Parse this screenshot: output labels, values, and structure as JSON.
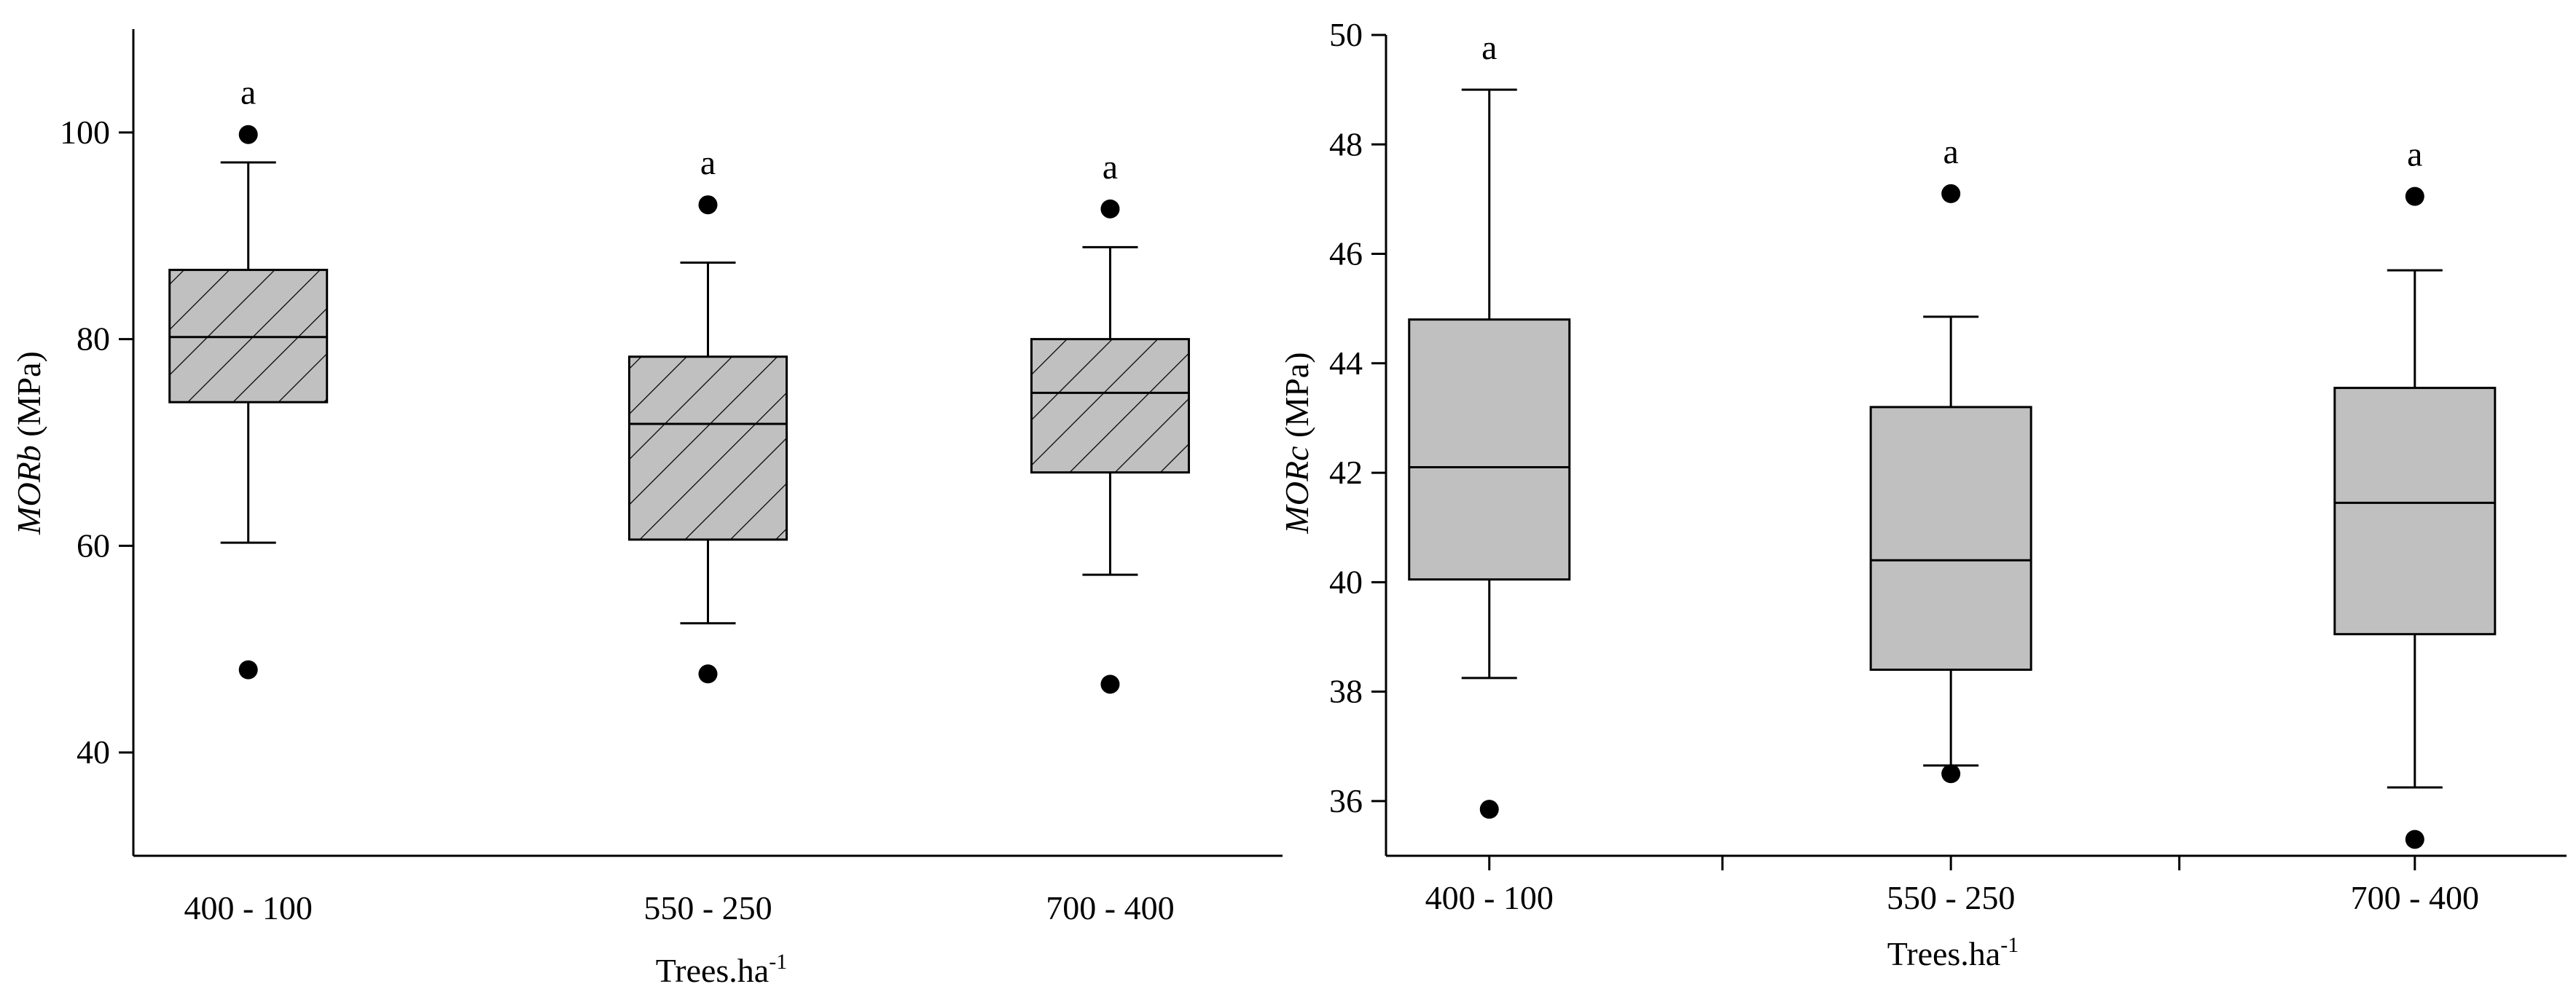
{
  "chart_data": [
    {
      "type": "box",
      "ylabel_italic": "MORb",
      "ylabel_unit": " (MPa)",
      "xlabel_main": "Trees.ha",
      "xlabel_sup": "-1",
      "ylim": [
        30,
        110
      ],
      "yticks": [
        40,
        60,
        80,
        100
      ],
      "hatched": true,
      "box_fill": "#c0c0c0",
      "categories": [
        "400 - 100",
        "550 - 250",
        "700 - 400"
      ],
      "boxes": [
        {
          "category": "400 - 100",
          "whisker_low": 60.3,
          "q1": 73.9,
          "median": 80.2,
          "q3": 86.7,
          "whisker_high": 97.1,
          "outliers": [
            99.8,
            48.0
          ],
          "letter": "a"
        },
        {
          "category": "550 - 250",
          "whisker_low": 52.5,
          "q1": 60.6,
          "median": 71.8,
          "q3": 78.3,
          "whisker_high": 87.4,
          "outliers": [
            93.0,
            47.6
          ],
          "letter": "a"
        },
        {
          "category": "700 - 400",
          "whisker_low": 57.2,
          "q1": 67.1,
          "median": 74.8,
          "q3": 80.0,
          "whisker_high": 88.9,
          "outliers": [
            92.6,
            46.6
          ],
          "letter": "a"
        }
      ]
    },
    {
      "type": "box",
      "ylabel_italic": "MORc",
      "ylabel_unit": " (MPa)",
      "xlabel_main": "Trees.ha",
      "xlabel_sup": "-1",
      "ylim": [
        35,
        50
      ],
      "yticks": [
        36,
        38,
        40,
        42,
        44,
        46,
        48,
        50
      ],
      "hatched": false,
      "box_fill": "#c0c0c0",
      "categories": [
        "400 - 100",
        "550 - 250",
        "700 - 400"
      ],
      "boxes": [
        {
          "category": "400 - 100",
          "whisker_low": 38.25,
          "q1": 40.05,
          "median": 42.1,
          "q3": 44.8,
          "whisker_high": 49.0,
          "outliers": [
            35.85
          ],
          "letter": "a"
        },
        {
          "category": "550 - 250",
          "whisker_low": 36.65,
          "q1": 38.4,
          "median": 40.4,
          "q3": 43.2,
          "whisker_high": 44.85,
          "outliers": [
            47.1,
            36.5
          ],
          "letter": "a"
        },
        {
          "category": "700 - 400",
          "whisker_low": 36.25,
          "q1": 39.05,
          "median": 41.45,
          "q3": 43.55,
          "whisker_high": 45.7,
          "outliers": [
            47.05,
            35.3
          ],
          "letter": "a"
        }
      ]
    }
  ]
}
